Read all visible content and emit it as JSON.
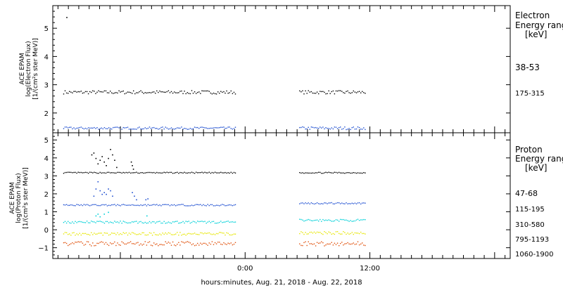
{
  "xlabel": "hours:minutes, Aug. 21, 2018 - Aug. 22, 2018",
  "panels": {
    "electron": {
      "ylabel": [
        "ACE EPAM",
        "log(Electron Flux)",
        "[1/(cm²s ster MeV)]"
      ],
      "legend_title": [
        "Electron",
        "Energy range",
        "[keV]"
      ]
    },
    "proton": {
      "ylabel": [
        "ACE EPAM",
        "log(Proton Flux)",
        "[1/(cm²s ster MeV)]"
      ],
      "legend_title": [
        "Proton",
        "Energy range",
        "[keV]"
      ]
    }
  },
  "chart_data": [
    {
      "type": "scatter",
      "panel": "electron",
      "title": "",
      "ylabel": "ACE EPAM log(Electron Flux) [1/(cm²s ster MeV)]",
      "xlim": [
        -18.5,
        25.5
      ],
      "ylim": [
        1.3,
        5.8
      ],
      "yticks": [
        2,
        3,
        4,
        5
      ],
      "xticks": [
        {
          "value": 0,
          "label": "0:00"
        },
        {
          "value": 12,
          "label": "12:00"
        }
      ],
      "data_gap": [
        -0.9,
        5.2
      ],
      "series": [
        {
          "name": "38-53",
          "color": "#000000",
          "segments": [
            {
              "x_start": -17.5,
              "x_end": -0.9,
              "level": 2.75,
              "jitter": 0.06
            },
            {
              "x_start": 5.2,
              "x_end": 11.6,
              "level": 2.75,
              "jitter": 0.06
            }
          ],
          "extra_points": [
            {
              "x": -17.2,
              "y": 5.4
            }
          ]
        },
        {
          "name": "175-315",
          "color": "#1f4fd1",
          "segments": [
            {
              "x_start": -17.5,
              "x_end": -0.9,
              "level": 1.48,
              "jitter": 0.04
            },
            {
              "x_start": 5.2,
              "x_end": 11.6,
              "level": 1.48,
              "jitter": 0.05
            }
          ]
        }
      ]
    },
    {
      "type": "scatter",
      "panel": "proton",
      "title": "",
      "ylabel": "ACE EPAM log(Proton Flux) [1/(cm²s ster MeV)]",
      "xlim": [
        -18.5,
        25.5
      ],
      "ylim": [
        -1.6,
        5.4
      ],
      "yticks": [
        -1,
        0,
        1,
        2,
        3,
        4,
        5
      ],
      "xticks": [
        {
          "value": 0,
          "label": "0:00"
        },
        {
          "value": 12,
          "label": "12:00"
        }
      ],
      "data_gap": [
        -0.9,
        5.2
      ],
      "series": [
        {
          "name": "47-68",
          "color": "#000000",
          "segments": [
            {
              "x_start": -17.5,
              "x_end": -0.9,
              "level": 3.2,
              "jitter": 0.03
            },
            {
              "x_start": 5.2,
              "x_end": 11.6,
              "level": 3.2,
              "jitter": 0.03
            }
          ],
          "extra_points": [
            {
              "x": -14.8,
              "y": 4.2
            },
            {
              "x": -14.6,
              "y": 4.3
            },
            {
              "x": -14.4,
              "y": 4.0
            },
            {
              "x": -14.2,
              "y": 3.7
            },
            {
              "x": -14.0,
              "y": 3.9
            },
            {
              "x": -13.8,
              "y": 4.1
            },
            {
              "x": -13.6,
              "y": 3.8
            },
            {
              "x": -13.4,
              "y": 3.6
            },
            {
              "x": -13.2,
              "y": 4.0
            },
            {
              "x": -13.0,
              "y": 4.5
            },
            {
              "x": -12.8,
              "y": 4.2
            },
            {
              "x": -12.6,
              "y": 3.9
            },
            {
              "x": -12.4,
              "y": 3.5
            },
            {
              "x": -11.0,
              "y": 3.8
            },
            {
              "x": -10.9,
              "y": 3.6
            },
            {
              "x": -10.8,
              "y": 3.4
            }
          ]
        },
        {
          "name": "115-195",
          "color": "#1f4fd1",
          "segments": [
            {
              "x_start": -17.5,
              "x_end": -0.9,
              "level": 1.4,
              "jitter": 0.04
            },
            {
              "x_start": 5.2,
              "x_end": 11.6,
              "level": 1.5,
              "jitter": 0.04
            }
          ],
          "extra_points": [
            {
              "x": -14.6,
              "y": 1.9
            },
            {
              "x": -14.4,
              "y": 2.3
            },
            {
              "x": -14.2,
              "y": 2.7
            },
            {
              "x": -14.0,
              "y": 2.2
            },
            {
              "x": -13.8,
              "y": 2.0
            },
            {
              "x": -13.6,
              "y": 2.1
            },
            {
              "x": -13.4,
              "y": 2.0
            },
            {
              "x": -13.2,
              "y": 2.3
            },
            {
              "x": -13.0,
              "y": 2.2
            },
            {
              "x": -12.8,
              "y": 1.9
            },
            {
              "x": -10.9,
              "y": 2.1
            },
            {
              "x": -10.7,
              "y": 1.9
            },
            {
              "x": -10.5,
              "y": 1.7
            },
            {
              "x": -9.6,
              "y": 1.7
            },
            {
              "x": -9.4,
              "y": 1.75
            }
          ]
        },
        {
          "name": "310-580",
          "color": "#00d0d8",
          "segments": [
            {
              "x_start": -17.5,
              "x_end": -0.9,
              "level": 0.45,
              "jitter": 0.06
            },
            {
              "x_start": 5.2,
              "x_end": 11.6,
              "level": 0.55,
              "jitter": 0.06
            }
          ],
          "extra_points": [
            {
              "x": -14.4,
              "y": 0.8
            },
            {
              "x": -14.2,
              "y": 0.9
            },
            {
              "x": -14.0,
              "y": 0.75
            },
            {
              "x": -13.6,
              "y": 0.9
            },
            {
              "x": -13.2,
              "y": 1.0
            },
            {
              "x": -9.5,
              "y": 0.8
            }
          ]
        },
        {
          "name": "795-1193",
          "color": "#e6e600",
          "segments": [
            {
              "x_start": -17.5,
              "x_end": -0.9,
              "level": -0.2,
              "jitter": 0.08
            },
            {
              "x_start": 5.2,
              "x_end": 11.6,
              "level": -0.15,
              "jitter": 0.08
            }
          ]
        },
        {
          "name": "1060-1900",
          "color": "#e0500a",
          "segments": [
            {
              "x_start": -17.5,
              "x_end": -0.9,
              "level": -0.75,
              "jitter": 0.12
            },
            {
              "x_start": 5.2,
              "x_end": 11.6,
              "level": -0.75,
              "jitter": 0.12
            }
          ]
        }
      ]
    }
  ]
}
